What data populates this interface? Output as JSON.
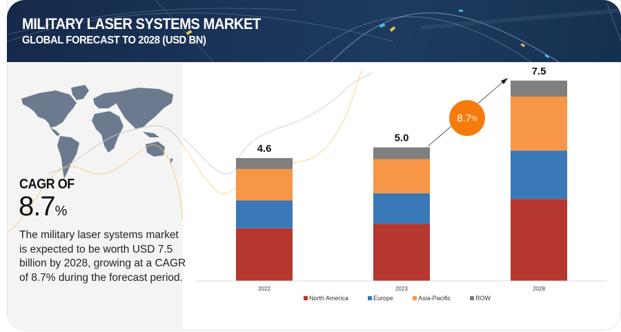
{
  "header": {
    "title": "MILITARY LASER SYSTEMS MARKET",
    "subtitle": "GLOBAL FORECAST TO 2028 (USD BN)"
  },
  "left_panel": {
    "map_icon": "world-map-icon",
    "cagr_label": "CAGR OF",
    "cagr_value": "8.7",
    "cagr_unit": "%",
    "description": "The military laser systems market is expected to be worth USD 7.5 billion by 2028, growing at a CAGR of 8.7% during the forecast period."
  },
  "growth_badge": {
    "value": "8.7",
    "unit": "%"
  },
  "colors": {
    "header_bg": "#1b3559",
    "north_america": "#b5372f",
    "europe": "#3a78b8",
    "asia_pacific": "#f79646",
    "row": "#7f7f7f",
    "badge": "#f57c0c"
  },
  "chart_data": {
    "type": "bar",
    "stacked": true,
    "title": "Military Laser Systems Market, Global Forecast to 2028 (USD BN)",
    "categories": [
      "2022",
      "2023",
      "2028"
    ],
    "totals": [
      "4.6",
      "5.0",
      "7.5"
    ],
    "series": [
      {
        "name": "North America",
        "values": [
          1.97,
          2.14,
          3.07
        ]
      },
      {
        "name": "Europe",
        "values": [
          1.04,
          1.14,
          1.81
        ]
      },
      {
        "name": "Asia-Pacific",
        "values": [
          1.18,
          1.28,
          2.02
        ]
      },
      {
        "name": "ROW",
        "values": [
          0.41,
          0.44,
          0.6
        ]
      }
    ],
    "xlabel": "",
    "ylabel": "USD BN",
    "ylim": [
      0,
      8
    ],
    "grid": false,
    "legend": "bottom",
    "annotation": "8.7%"
  }
}
